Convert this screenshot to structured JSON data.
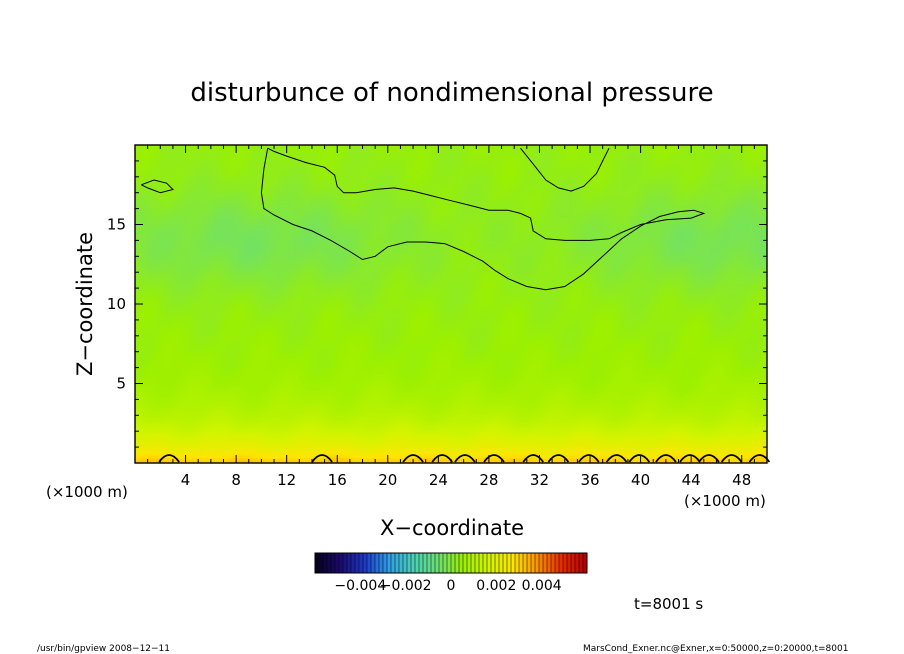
{
  "chart_data": {
    "type": "heatmap",
    "title": "disturbunce of nondimensional pressure",
    "xlabel": "X−coordinate",
    "ylabel": "Z−coordinate",
    "x_unit": "(×1000 m)",
    "y_unit": "(×1000 m)",
    "xlim": [
      0,
      50
    ],
    "ylim": [
      0,
      20
    ],
    "x_ticks": [
      4,
      8,
      12,
      16,
      20,
      24,
      28,
      32,
      36,
      40,
      44,
      48
    ],
    "y_ticks": [
      5,
      10,
      15
    ],
    "colorbar": {
      "range": [
        -0.006,
        0.006
      ],
      "tick_values": [
        -0.004,
        -0.002,
        0,
        0.002,
        0.004
      ],
      "tick_labels": [
        "−0.004",
        "−0.002",
        "0",
        "0.002",
        "0.004"
      ]
    },
    "field_description": {
      "surface_value": 0.0032,
      "upper_value": 0.0004,
      "minimum_near_z": 14
    },
    "contour_lines": [
      {
        "points": [
          [
            0.5,
            17.5
          ],
          [
            1.5,
            17.8
          ],
          [
            2.5,
            17.6
          ],
          [
            3,
            17.2
          ],
          [
            2,
            17.0
          ],
          [
            1,
            17.3
          ],
          [
            0.5,
            17.5
          ]
        ]
      },
      {
        "points": [
          [
            10.5,
            19.8
          ],
          [
            10.2,
            18.5
          ],
          [
            10.0,
            17.0
          ],
          [
            10.2,
            16.0
          ],
          [
            11,
            15.6
          ],
          [
            12.5,
            15.0
          ],
          [
            14,
            14.6
          ],
          [
            15.5,
            14.0
          ],
          [
            17,
            13.3
          ],
          [
            18,
            12.8
          ],
          [
            19,
            13.0
          ],
          [
            20,
            13.6
          ],
          [
            21.5,
            13.9
          ],
          [
            23,
            13.9
          ],
          [
            24.5,
            13.8
          ],
          [
            26,
            13.3
          ],
          [
            27.5,
            12.7
          ],
          [
            28.5,
            12.1
          ],
          [
            29.5,
            11.6
          ],
          [
            31,
            11.1
          ],
          [
            32.5,
            10.9
          ],
          [
            34,
            11.1
          ],
          [
            35.5,
            11.9
          ],
          [
            37,
            13.0
          ],
          [
            38.5,
            14.1
          ],
          [
            40,
            14.9
          ],
          [
            41.5,
            15.5
          ],
          [
            43,
            15.8
          ],
          [
            44.2,
            15.9
          ],
          [
            45,
            15.7
          ],
          [
            44,
            15.4
          ],
          [
            42,
            15.3
          ],
          [
            40,
            15.0
          ],
          [
            38.5,
            14.5
          ],
          [
            37.5,
            14.1
          ],
          [
            36,
            14.0
          ],
          [
            34,
            14.0
          ],
          [
            32.5,
            14.1
          ],
          [
            31.5,
            14.6
          ],
          [
            31.3,
            15.4
          ],
          [
            30.5,
            15.7
          ],
          [
            29.5,
            15.9
          ],
          [
            28,
            15.9
          ],
          [
            26.5,
            16.2
          ],
          [
            25,
            16.5
          ],
          [
            23.5,
            16.8
          ],
          [
            22,
            17.1
          ],
          [
            20.5,
            17.3
          ],
          [
            19,
            17.2
          ],
          [
            17.5,
            17.0
          ],
          [
            16.5,
            17.0
          ],
          [
            16,
            17.4
          ],
          [
            15.8,
            18.1
          ],
          [
            15,
            18.6
          ],
          [
            13.5,
            18.9
          ],
          [
            12,
            19.3
          ],
          [
            11,
            19.6
          ],
          [
            10.5,
            19.8
          ]
        ]
      },
      {
        "points": [
          [
            30.5,
            19.8
          ],
          [
            31.5,
            18.8
          ],
          [
            32.5,
            17.8
          ],
          [
            33.5,
            17.3
          ],
          [
            34.5,
            17.1
          ],
          [
            35.5,
            17.4
          ],
          [
            36.5,
            18.2
          ],
          [
            37,
            19.0
          ],
          [
            37.5,
            19.8
          ]
        ]
      }
    ],
    "surface_bumps_x": [
      2.7,
      14.8,
      22,
      24.3,
      26.1,
      28.4,
      31.5,
      33.5,
      35.9,
      38.1,
      39.9,
      42,
      43.9,
      45.4,
      47.2,
      49.4
    ]
  },
  "labels": {
    "time": "t=8001 s",
    "footer_left": "/usr/bin/gpview   2008−12−11",
    "footer_right": "MarsCond_Exner.nc@Exner,x=0:50000,z=0:20000,t=8001"
  },
  "colors": {
    "background": "#ffffff",
    "axes": "#000000",
    "contour": "#000000",
    "colormap_stops": [
      "#06001e",
      "#1a0a6e",
      "#1c38c8",
      "#2fa0e6",
      "#4ad2b4",
      "#6ee070",
      "#9cf000",
      "#d2f500",
      "#ffe600",
      "#ff9000",
      "#e82800",
      "#b00000"
    ]
  }
}
